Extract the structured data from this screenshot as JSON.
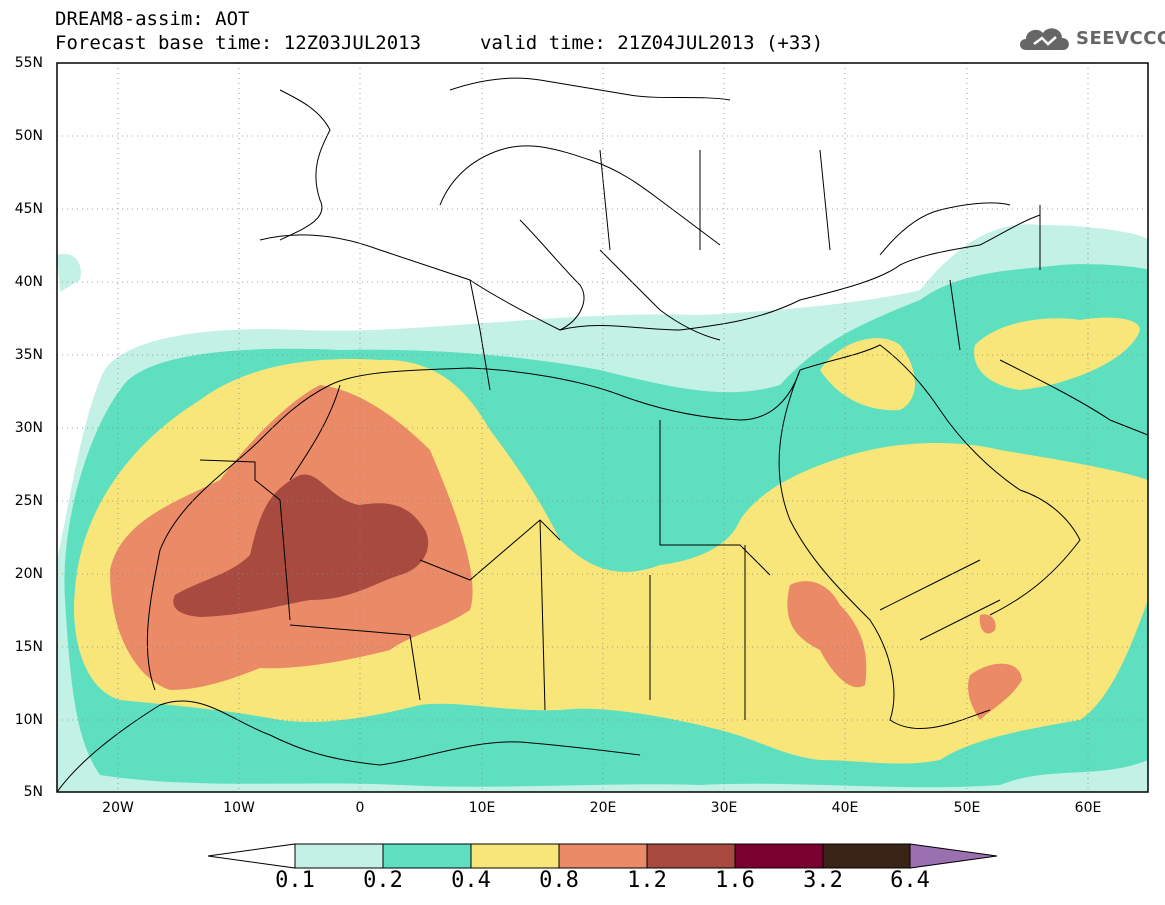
{
  "header": {
    "title_line1": "DREAM8-assim: AOT",
    "title_line2": "Forecast base time: 12Z03JUL2013",
    "valid_time": "valid time: 21Z04JUL2013 (+33)"
  },
  "logo": {
    "text": "SEEVCCC",
    "icon": "cloud-icon"
  },
  "map": {
    "extent": {
      "lon": [
        -25,
        65
      ],
      "lat": [
        5,
        55
      ]
    },
    "lat_labels": [
      "55N",
      "50N",
      "45N",
      "40N",
      "35N",
      "30N",
      "25N",
      "20N",
      "15N",
      "10N",
      "5N"
    ],
    "lon_labels": [
      "20W",
      "10W",
      "0",
      "10E",
      "20E",
      "30E",
      "40E",
      "50E",
      "60E"
    ],
    "grid": true
  },
  "colorbar": {
    "labels": [
      "0.1",
      "0.2",
      "0.4",
      "0.8",
      "1.2",
      "1.6",
      "3.2",
      "6.4"
    ],
    "colors": [
      "#ffffff",
      "#c4f1e6",
      "#5ee0c0",
      "#f8e67a",
      "#ea8a67",
      "#a84a40",
      "#7a0030",
      "#3a2418",
      "#9a70b0"
    ]
  }
}
